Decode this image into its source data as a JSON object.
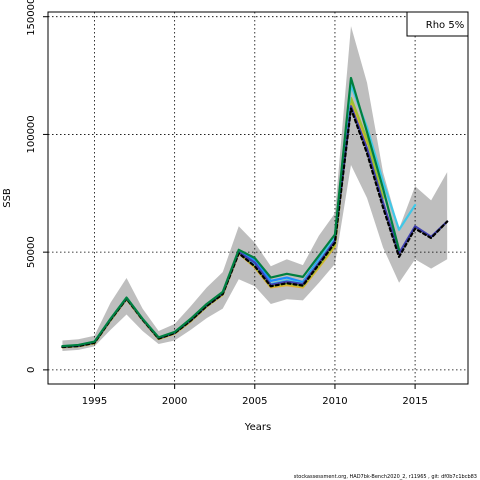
{
  "chart_data": {
    "type": "line",
    "title": "",
    "xlabel": "Years",
    "ylabel": "SSB",
    "xlim": [
      1992.1,
      2018.3
    ],
    "ylim": [
      -6000,
      152000
    ],
    "x_ticks": [
      1995,
      2000,
      2005,
      2010,
      2015
    ],
    "y_ticks": [
      0,
      50000,
      100000,
      150000
    ],
    "grid": true,
    "legend": {
      "label": "Rho 5%",
      "placement": "top-right"
    },
    "footer": "stockassessment.org, HAD7bk-Bench2020_2, r11965 , git: df0b7c1bcb83",
    "confidence_band": {
      "color": "#bebebe",
      "x": [
        1993,
        1994,
        1995,
        1996,
        1997,
        1998,
        1999,
        2000,
        2001,
        2002,
        2003,
        2004,
        2005,
        2006,
        2007,
        2008,
        2009,
        2010,
        2011,
        2012,
        2013,
        2014,
        2015,
        2016,
        2017
      ],
      "lower": [
        8000,
        8500,
        10000,
        17000,
        23500,
        16500,
        11000,
        12500,
        17000,
        22000,
        26000,
        38500,
        35500,
        28000,
        30000,
        29500,
        37000,
        45000,
        87000,
        73000,
        52000,
        37000,
        47000,
        43000,
        47000
      ],
      "upper": [
        12500,
        13000,
        14500,
        28500,
        39000,
        26000,
        16500,
        19500,
        27000,
        35000,
        41500,
        61000,
        54000,
        44000,
        47000,
        44500,
        57000,
        66500,
        146000,
        122000,
        84000,
        60000,
        78000,
        72000,
        84000
      ]
    },
    "series": [
      {
        "color": "#1a8cff",
        "dash": false,
        "x": [
          1993,
          1994,
          1995,
          1996,
          1997,
          1998,
          1999,
          2000,
          2001,
          2002,
          2003,
          2004,
          2005,
          2006,
          2007,
          2008,
          2009,
          2010,
          2011
        ],
        "values": [
          10000,
          10400,
          11800,
          21500,
          30500,
          21500,
          13600,
          15800,
          21200,
          27500,
          32600,
          50500,
          46500,
          37800,
          39200,
          37300,
          46800,
          56100,
          115000
        ]
      },
      {
        "color": "#e0b030",
        "dash": false,
        "x": [
          1993,
          1994,
          1995,
          1996,
          1997,
          1998,
          1999,
          2000,
          2001,
          2002,
          2003,
          2004,
          2005,
          2006,
          2007,
          2008,
          2009,
          2010,
          2011,
          2012
        ],
        "values": [
          9600,
          10000,
          11300,
          21000,
          30000,
          21200,
          13100,
          15400,
          20600,
          26900,
          31900,
          49500,
          43500,
          35000,
          36000,
          35000,
          43500,
          52500,
          114000,
          96000
        ]
      },
      {
        "color": "#9fc030",
        "dash": false,
        "x": [
          1993,
          1994,
          1995,
          1996,
          1997,
          1998,
          1999,
          2000,
          2001,
          2002,
          2003,
          2004,
          2005,
          2006,
          2007,
          2008,
          2009,
          2010,
          2011,
          2012,
          2013
        ],
        "values": [
          9700,
          10100,
          11400,
          21100,
          30100,
          21300,
          13200,
          15500,
          20800,
          27000,
          32100,
          49800,
          44000,
          35500,
          36600,
          35600,
          44200,
          53200,
          115500,
          98000,
          73000
        ]
      },
      {
        "color": "#40c8e8",
        "dash": false,
        "x": [
          1993,
          1994,
          1995,
          1996,
          1997,
          1998,
          1999,
          2000,
          2001,
          2002,
          2003,
          2004,
          2005,
          2006,
          2007,
          2008,
          2009,
          2010,
          2011,
          2012,
          2013,
          2014,
          2015
        ],
        "values": [
          10000,
          10500,
          11900,
          21600,
          30600,
          21600,
          13700,
          16000,
          21500,
          27800,
          32900,
          50200,
          45000,
          36500,
          38000,
          36800,
          46200,
          56500,
          121000,
          103000,
          80000,
          59500,
          70000
        ]
      },
      {
        "color": "#4040b0",
        "dash": false,
        "x": [
          1993,
          1994,
          1995,
          1996,
          1997,
          1998,
          1999,
          2000,
          2001,
          2002,
          2003,
          2004,
          2005,
          2006,
          2007,
          2008,
          2009,
          2010,
          2011,
          2012,
          2013,
          2014,
          2015,
          2016,
          2017
        ],
        "values": [
          9800,
          10200,
          11600,
          21300,
          30300,
          21400,
          13400,
          15700,
          21000,
          27300,
          32400,
          50000,
          45500,
          36200,
          37500,
          36500,
          45500,
          55000,
          112000,
          94000,
          71000,
          49500,
          61000,
          56500,
          63000
        ]
      },
      {
        "color": "#000000",
        "dash": true,
        "x": [
          1993,
          1994,
          1995,
          1996,
          1997,
          1998,
          1999,
          2000,
          2001,
          2002,
          2003,
          2004,
          2005,
          2006,
          2007,
          2008,
          2009,
          2010,
          2011,
          2012,
          2013,
          2014,
          2015,
          2016,
          2017
        ],
        "values": [
          9700,
          10100,
          11500,
          21200,
          30200,
          21300,
          13300,
          15600,
          20900,
          27100,
          32200,
          49500,
          44000,
          35500,
          36800,
          35800,
          44800,
          54000,
          111000,
          92000,
          69000,
          48000,
          60000,
          56000,
          63000
        ]
      },
      {
        "color": "#008040",
        "dash": false,
        "x": [
          1993,
          1994,
          1995,
          1996,
          1997,
          1998,
          1999,
          2000,
          2001,
          2002,
          2003,
          2004,
          2005,
          2006,
          2007,
          2008,
          2009,
          2010,
          2011,
          2012,
          2013,
          2014
        ],
        "values": [
          10100,
          10600,
          12000,
          21700,
          30700,
          21700,
          13800,
          16100,
          21700,
          28000,
          33100,
          51000,
          47500,
          39200,
          40800,
          39500,
          48500,
          57500,
          124000,
          101000,
          77000,
          51000
        ]
      }
    ]
  }
}
